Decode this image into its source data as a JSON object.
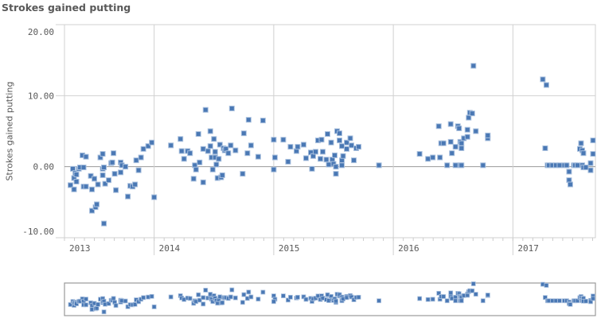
{
  "chart_data": {
    "type": "scatter",
    "title": "Strokes gained putting",
    "ylabel": "Strokes gained putting",
    "xlabel": "",
    "x_ticks": [
      "2013",
      "2014",
      "2015",
      "2016",
      "2017"
    ],
    "y_ticks": [
      "20.00",
      "10.00",
      "0.00",
      "-10.00"
    ],
    "xlim": [
      2013.25,
      2017.69
    ],
    "ylim": [
      -10,
      20
    ],
    "grid": true,
    "color": "#4a78b4",
    "points": [
      [
        2013.3,
        -2.6
      ],
      [
        2013.32,
        -0.3
      ],
      [
        2013.33,
        -3.2
      ],
      [
        2013.33,
        -1.6
      ],
      [
        2013.34,
        -0.9
      ],
      [
        2013.35,
        -1.1
      ],
      [
        2013.35,
        -2.1
      ],
      [
        2013.37,
        -0.3
      ],
      [
        2013.38,
        -0.1
      ],
      [
        2013.4,
        1.6
      ],
      [
        2013.41,
        -0.1
      ],
      [
        2013.41,
        -2.8
      ],
      [
        2013.43,
        -2.8
      ],
      [
        2013.43,
        1.4
      ],
      [
        2013.47,
        -1.3
      ],
      [
        2013.48,
        -3.2
      ],
      [
        2013.48,
        -6.2
      ],
      [
        2013.5,
        -1.7
      ],
      [
        2013.51,
        -5.7
      ],
      [
        2013.52,
        -5.3
      ],
      [
        2013.53,
        -2.5
      ],
      [
        2013.55,
        1.3
      ],
      [
        2013.57,
        -1.2
      ],
      [
        2013.57,
        -0.3
      ],
      [
        2013.57,
        1.8
      ],
      [
        2013.58,
        -8.0
      ],
      [
        2013.58,
        -0.1
      ],
      [
        2013.59,
        -2.4
      ],
      [
        2013.62,
        -1.9
      ],
      [
        2013.64,
        0.5
      ],
      [
        2013.65,
        0.6
      ],
      [
        2013.66,
        1.9
      ],
      [
        2013.67,
        -1.0
      ],
      [
        2013.68,
        -3.3
      ],
      [
        2013.72,
        -0.8
      ],
      [
        2013.72,
        0.6
      ],
      [
        2013.73,
        0.2
      ],
      [
        2013.76,
        0.0
      ],
      [
        2013.78,
        -4.2
      ],
      [
        2013.8,
        -2.7
      ],
      [
        2013.82,
        -2.8
      ],
      [
        2013.84,
        -2.5
      ],
      [
        2013.85,
        0.9
      ],
      [
        2013.87,
        -0.5
      ],
      [
        2013.89,
        1.3
      ],
      [
        2013.91,
        2.5
      ],
      [
        2013.95,
        2.9
      ],
      [
        2013.98,
        3.4
      ],
      [
        2014.0,
        -4.3
      ],
      [
        2014.14,
        3.0
      ],
      [
        2014.22,
        3.9
      ],
      [
        2014.23,
        2.2
      ],
      [
        2014.25,
        1.1
      ],
      [
        2014.28,
        2.2
      ],
      [
        2014.3,
        1.9
      ],
      [
        2014.33,
        -1.7
      ],
      [
        2014.34,
        0.2
      ],
      [
        2014.35,
        -0.4
      ],
      [
        2014.37,
        4.6
      ],
      [
        2014.38,
        0.6
      ],
      [
        2014.41,
        2.5
      ],
      [
        2014.41,
        -2.2
      ],
      [
        2014.43,
        8.0
      ],
      [
        2014.45,
        2.2
      ],
      [
        2014.47,
        2.9
      ],
      [
        2014.47,
        5.0
      ],
      [
        2014.48,
        1.3
      ],
      [
        2014.49,
        -0.4
      ],
      [
        2014.5,
        3.9
      ],
      [
        2014.51,
        1.3
      ],
      [
        2014.51,
        2.1
      ],
      [
        2014.52,
        0.3
      ],
      [
        2014.53,
        -1.6
      ],
      [
        2014.54,
        1.1
      ],
      [
        2014.55,
        3.1
      ],
      [
        2014.56,
        -1.5
      ],
      [
        2014.57,
        -1.2
      ],
      [
        2014.58,
        2.6
      ],
      [
        2014.59,
        2.3
      ],
      [
        2014.6,
        2.5
      ],
      [
        2014.62,
        1.9
      ],
      [
        2014.64,
        3.0
      ],
      [
        2014.65,
        8.2
      ],
      [
        2014.68,
        2.3
      ],
      [
        2014.74,
        -1.0
      ],
      [
        2014.75,
        4.7
      ],
      [
        2014.78,
        1.9
      ],
      [
        2014.79,
        6.6
      ],
      [
        2014.81,
        3.0
      ],
      [
        2014.87,
        1.4
      ],
      [
        2014.91,
        6.5
      ],
      [
        2015.0,
        3.8
      ],
      [
        2015.01,
        1.3
      ],
      [
        2015.0,
        -0.4
      ],
      [
        2015.08,
        3.8
      ],
      [
        2015.12,
        0.7
      ],
      [
        2015.14,
        2.8
      ],
      [
        2015.19,
        2.2
      ],
      [
        2015.2,
        2.8
      ],
      [
        2015.25,
        3.1
      ],
      [
        2015.27,
        1.2
      ],
      [
        2015.31,
        2.0
      ],
      [
        2015.32,
        -0.3
      ],
      [
        2015.33,
        1.5
      ],
      [
        2015.35,
        2.1
      ],
      [
        2015.37,
        3.7
      ],
      [
        2015.39,
        1.1
      ],
      [
        2015.4,
        3.8
      ],
      [
        2015.41,
        2.1
      ],
      [
        2015.44,
        1.0
      ],
      [
        2015.45,
        4.6
      ],
      [
        2015.46,
        0.3
      ],
      [
        2015.48,
        3.4
      ],
      [
        2015.49,
        1.0
      ],
      [
        2015.5,
        0.4
      ],
      [
        2015.51,
        1.6
      ],
      [
        2015.52,
        -1.0
      ],
      [
        2015.52,
        0.0
      ],
      [
        2015.53,
        5.0
      ],
      [
        2015.55,
        3.7
      ],
      [
        2015.55,
        4.7
      ],
      [
        2015.57,
        2.9
      ],
      [
        2015.57,
        0.9
      ],
      [
        2015.57,
        0.2
      ],
      [
        2015.58,
        1.5
      ],
      [
        2015.61,
        3.4
      ],
      [
        2015.61,
        2.5
      ],
      [
        2015.64,
        4.0
      ],
      [
        2015.65,
        3.0
      ],
      [
        2015.67,
        0.9
      ],
      [
        2015.69,
        2.6
      ],
      [
        2015.71,
        2.8
      ],
      [
        2015.88,
        0.2
      ],
      [
        2016.22,
        1.8
      ],
      [
        2016.29,
        1.1
      ],
      [
        2016.33,
        1.3
      ],
      [
        2016.38,
        5.7
      ],
      [
        2016.39,
        1.3
      ],
      [
        2016.4,
        3.3
      ],
      [
        2016.42,
        3.3
      ],
      [
        2016.45,
        0.2
      ],
      [
        2016.48,
        3.5
      ],
      [
        2016.48,
        6.0
      ],
      [
        2016.49,
        1.9
      ],
      [
        2016.52,
        2.8
      ],
      [
        2016.52,
        0.2
      ],
      [
        2016.54,
        5.7
      ],
      [
        2016.55,
        5.4
      ],
      [
        2016.56,
        3.5
      ],
      [
        2016.56,
        0.2
      ],
      [
        2016.57,
        3.3
      ],
      [
        2016.57,
        2.6
      ],
      [
        2016.57,
        0.2
      ],
      [
        2016.59,
        4.0
      ],
      [
        2016.62,
        5.2
      ],
      [
        2016.62,
        4.2
      ],
      [
        2016.63,
        6.9
      ],
      [
        2016.64,
        7.6
      ],
      [
        2016.66,
        7.5
      ],
      [
        2016.67,
        14.2
      ],
      [
        2016.69,
        5.0
      ],
      [
        2016.75,
        0.2
      ],
      [
        2016.79,
        4.0
      ],
      [
        2016.79,
        4.4
      ],
      [
        2017.25,
        12.3
      ],
      [
        2017.27,
        2.6
      ],
      [
        2017.28,
        11.5
      ],
      [
        2017.29,
        0.2
      ],
      [
        2017.3,
        0.2
      ],
      [
        2017.33,
        0.2
      ],
      [
        2017.36,
        0.2
      ],
      [
        2017.39,
        0.2
      ],
      [
        2017.43,
        0.2
      ],
      [
        2017.45,
        0.2
      ],
      [
        2017.47,
        -0.7
      ],
      [
        2017.47,
        -1.9
      ],
      [
        2017.48,
        -2.5
      ],
      [
        2017.51,
        0.2
      ],
      [
        2017.52,
        0.2
      ],
      [
        2017.54,
        0.2
      ],
      [
        2017.56,
        2.5
      ],
      [
        2017.57,
        3.3
      ],
      [
        2017.58,
        2.3
      ],
      [
        2017.58,
        0.2
      ],
      [
        2017.59,
        1.9
      ],
      [
        2017.59,
        -0.1
      ],
      [
        2017.61,
        -0.1
      ],
      [
        2017.65,
        0.5
      ],
      [
        2017.65,
        -0.5
      ],
      [
        2017.67,
        3.7
      ],
      [
        2017.67,
        1.8
      ]
    ]
  }
}
